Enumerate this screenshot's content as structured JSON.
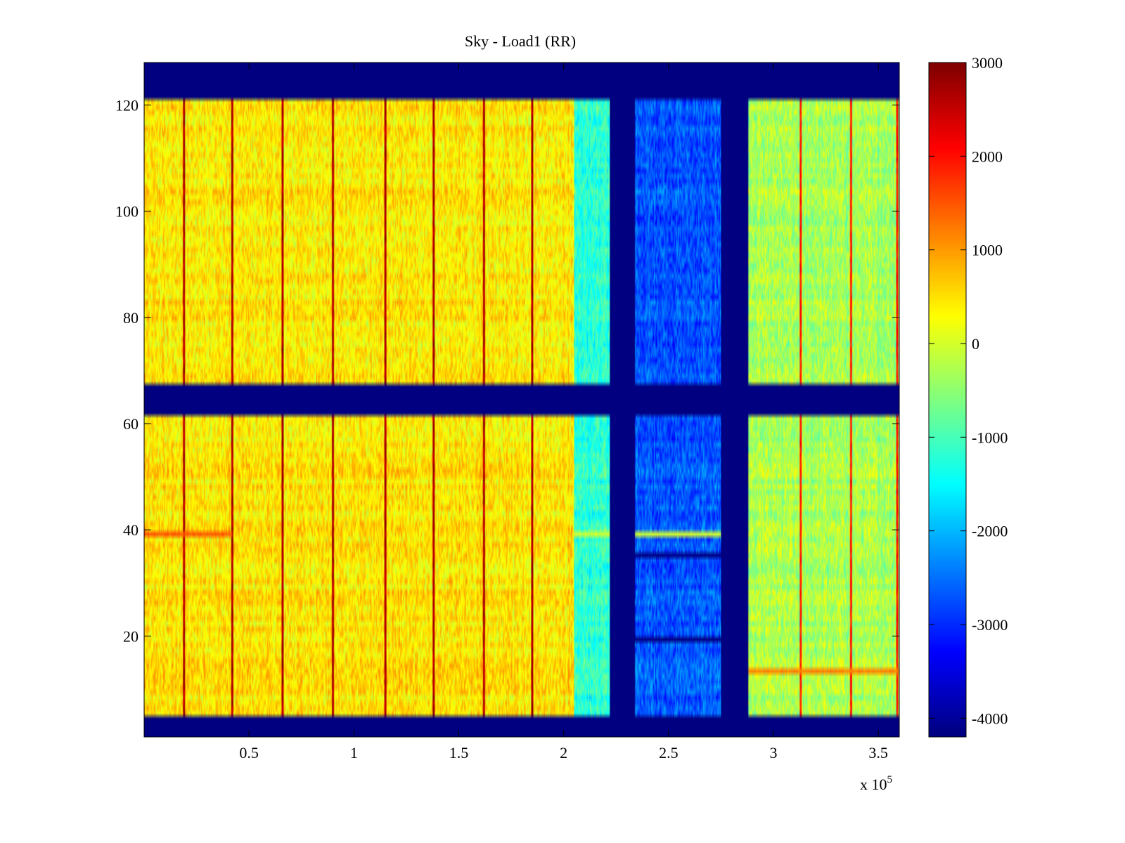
{
  "chart_data": {
    "type": "heatmap",
    "title": "Sky - Load1 (RR)",
    "xlabel": "",
    "ylabel": "",
    "x_exponent_label": "x 10",
    "x_exponent_power": "5",
    "xlim": [
      0,
      3.6
    ],
    "ylim": [
      1,
      128
    ],
    "x_ticks": [
      0.5,
      1,
      1.5,
      2,
      2.5,
      3,
      3.5
    ],
    "x_tick_labels": [
      "0.5",
      "1",
      "1.5",
      "2",
      "2.5",
      "3",
      "3.5"
    ],
    "y_ticks": [
      20,
      40,
      60,
      80,
      100,
      120
    ],
    "y_tick_labels": [
      "20",
      "40",
      "60",
      "80",
      "100",
      "120"
    ],
    "colorbar": {
      "colormap": "jet",
      "clim": [
        -4200,
        3000
      ],
      "ticks": [
        3000,
        2000,
        1000,
        0,
        -1000,
        -2000,
        -3000,
        -4000
      ],
      "tick_labels": [
        "3000",
        "2000",
        "1000",
        "0",
        "-1000",
        "-2000",
        "-3000",
        "-4000"
      ]
    },
    "fill_value": -4200,
    "masked_rows": [
      [
        1,
        4
      ],
      [
        62,
        67
      ],
      [
        122,
        128
      ]
    ],
    "masked_columns": [
      [
        2.22,
        2.34
      ],
      [
        2.75,
        2.88
      ]
    ],
    "regions": [
      {
        "x": [
          0,
          2.05
        ],
        "mean": 450
      },
      {
        "x": [
          2.05,
          2.22
        ],
        "mean": -1200
      },
      {
        "x": [
          2.34,
          2.75
        ],
        "mean": -2700
      },
      {
        "x": [
          2.88,
          3.6
        ],
        "mean": -300
      }
    ],
    "hot_columns_x": [
      0.19,
      0.42,
      0.66,
      0.9,
      1.15,
      1.38,
      1.62,
      1.85,
      3.13,
      3.37,
      3.59
    ],
    "special_rows": [
      {
        "row": 39,
        "x": [
          0,
          0.42
        ],
        "value": 1500
      },
      {
        "row": 39,
        "x": [
          2.05,
          2.9
        ],
        "value": 0
      },
      {
        "row": 13,
        "x": [
          2.88,
          3.6
        ],
        "value": 1200
      },
      {
        "row": 35,
        "x": [
          2.34,
          2.75
        ],
        "value": -4200
      },
      {
        "row": 19,
        "x": [
          2.34,
          2.75
        ],
        "value": -4200
      }
    ]
  }
}
